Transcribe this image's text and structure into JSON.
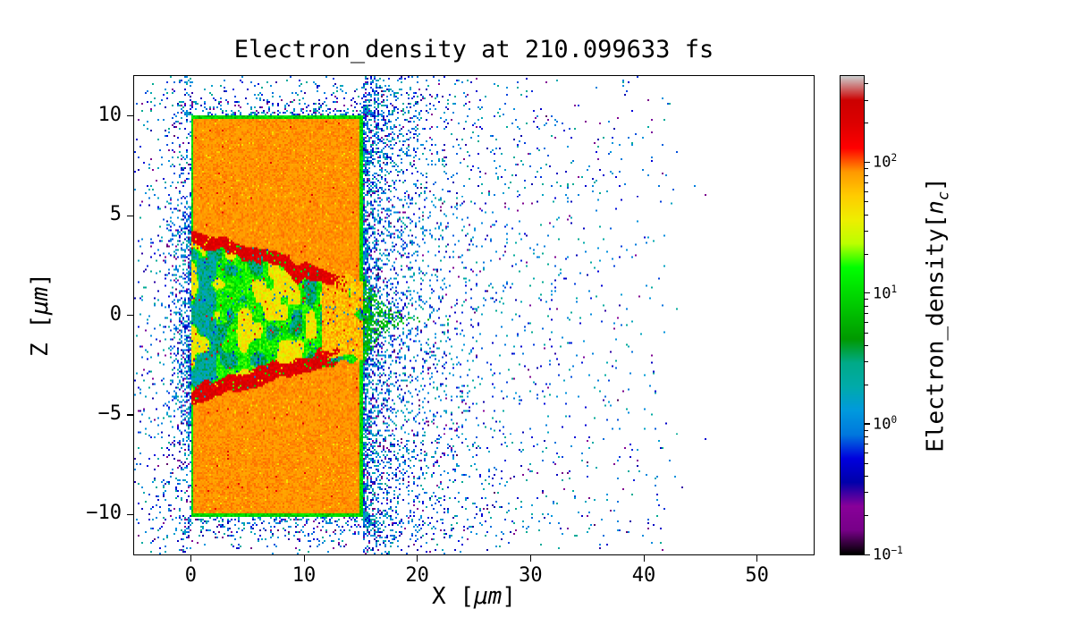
{
  "chart_data": {
    "type": "heatmap",
    "title": "Electron_density at 210.099633 fs",
    "xlabel": "X [μm]",
    "xlabel_parts": {
      "prefix": "X [",
      "math": "μm",
      "suffix": "]"
    },
    "ylabel": "Z [μm]",
    "ylabel_parts": {
      "prefix": "Z [",
      "math": "μm",
      "suffix": "]"
    },
    "xlim": [
      -5,
      55
    ],
    "ylim": [
      -12,
      12
    ],
    "x_ticks": [
      0,
      10,
      20,
      30,
      40,
      50
    ],
    "x_tick_labels": [
      "0",
      "10",
      "20",
      "30",
      "40",
      "50"
    ],
    "y_ticks": [
      10,
      5,
      0,
      -5,
      -10
    ],
    "y_tick_labels": [
      "10",
      "5",
      "0",
      "−5",
      "−10"
    ],
    "grid": false,
    "colormap": {
      "name": "nipy_spectral",
      "stops": [
        [
          0.0,
          "#000000"
        ],
        [
          0.05,
          "#770088"
        ],
        [
          0.1,
          "#880099"
        ],
        [
          0.15,
          "#0000aa"
        ],
        [
          0.2,
          "#0000dd"
        ],
        [
          0.25,
          "#0077dd"
        ],
        [
          0.3,
          "#0099dd"
        ],
        [
          0.35,
          "#00aaaa"
        ],
        [
          0.4,
          "#00aa88"
        ],
        [
          0.45,
          "#009900"
        ],
        [
          0.5,
          "#00bb00"
        ],
        [
          0.55,
          "#00dd00"
        ],
        [
          0.6,
          "#00ff00"
        ],
        [
          0.65,
          "#bbff00"
        ],
        [
          0.7,
          "#eeee00"
        ],
        [
          0.75,
          "#ffcc00"
        ],
        [
          0.8,
          "#ff9900"
        ],
        [
          0.85,
          "#ff0000"
        ],
        [
          0.9,
          "#dd0000"
        ],
        [
          0.95,
          "#cc0000"
        ],
        [
          1.0,
          "#cccccc"
        ]
      ]
    },
    "colorbar": {
      "label": "Electron_density[n_c]",
      "label_parts": {
        "prefix": "Electron_density[",
        "math": "n",
        "sub": "c",
        "suffix": "]"
      },
      "scale": "log",
      "vmin": 0.1,
      "vmax": 457,
      "ticks": [
        {
          "base": "10",
          "exp": "2",
          "value": 100
        },
        {
          "base": "10",
          "exp": "1",
          "value": 10
        },
        {
          "base": "10",
          "exp": "0",
          "value": 1
        },
        {
          "base": "10",
          "exp": "−1",
          "value": 0.1
        }
      ]
    },
    "features": {
      "slab": {
        "x0": 0,
        "x1": 15.15,
        "z0": -10.15,
        "z1": 10.05,
        "density": 85,
        "edge_width": 0.22,
        "edge_density": 9
      },
      "channel": {
        "top_start_z": 4.3,
        "top_end_z": 1.7,
        "bot_start_z": -4.4,
        "bot_end_z": -2.1,
        "x_end": 15.15,
        "filament_fade_x": 13.8,
        "filament_density": 200,
        "green_density": 12,
        "yellow_density": 40,
        "cyan_density": 2.5
      },
      "plume": {
        "x0": 15.15,
        "z_center": -0.2,
        "half_width": 2.4,
        "x_decay": 1.7,
        "density": 5
      },
      "scatter_cloud": {
        "value_range": [
          0.13,
          2.7
        ],
        "right_near_p": 0.3,
        "right_near_decay": 3.5,
        "right_far_p": 0.1,
        "right_far_decay": 9,
        "x_cutoff": 41,
        "left_p": 0.2,
        "left_decay": 2.0,
        "mouth_p": 0.5,
        "cap_p": 0.35,
        "base_p": 0.012
      }
    }
  }
}
